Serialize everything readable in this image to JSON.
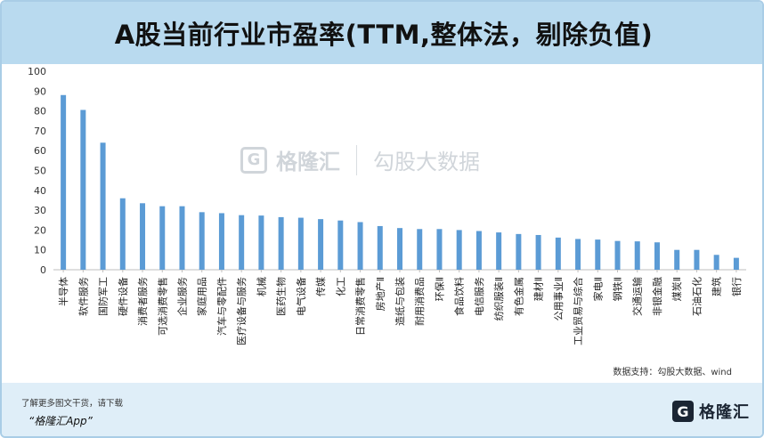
{
  "title": "A股当前行业市盈率(TTM,整体法，剔除负值)",
  "source": "数据支持：勾股大数据、wind",
  "footer": {
    "hint": "了解更多图文干货，请下载",
    "app": "“格隆汇App”",
    "brand_name": "格隆汇",
    "brand_icon": "G"
  },
  "watermark": {
    "brand": "格隆汇",
    "icon": "G",
    "partner": "勾股大数据"
  },
  "colors": {
    "bar": "#5b9bd5",
    "title_bg": "#b9daef",
    "footer_bg": "#dfeef8",
    "grid": "#d9d9d9"
  },
  "chart_data": {
    "type": "bar",
    "categories": [
      "半导体",
      "软件服务",
      "国防军工",
      "硬件设备",
      "消费者服务",
      "可选消费零售",
      "企业服务",
      "家庭用品",
      "汽车与零配件",
      "医疗设备与服务",
      "机械",
      "医药生物",
      "电气设备",
      "传媒",
      "化工",
      "日常消费零售",
      "房地产Ⅱ",
      "造纸与包装",
      "耐用消费品",
      "环保Ⅱ",
      "食品饮料",
      "电信服务",
      "纺织服装Ⅱ",
      "有色金属",
      "建材Ⅱ",
      "公用事业Ⅱ",
      "工业贸易与综合",
      "家电Ⅱ",
      "钢铁Ⅱ",
      "交通运输",
      "非银金融",
      "煤炭Ⅱ",
      "石油石化",
      "建筑",
      "银行"
    ],
    "values": [
      88,
      80.5,
      64,
      36,
      33.5,
      32,
      32,
      29,
      28.5,
      27.5,
      27.3,
      26.5,
      26.2,
      25.5,
      24.8,
      24,
      22,
      21,
      20.5,
      20.5,
      20,
      19.5,
      18.8,
      18,
      17.5,
      16.2,
      15.5,
      15.2,
      14.5,
      14.3,
      13.8,
      10,
      10,
      7.5,
      6
    ],
    "xlabel": "",
    "ylabel": "",
    "ylim": [
      0,
      100
    ],
    "yticks": [
      0,
      10,
      20,
      30,
      40,
      50,
      60,
      70,
      80,
      90,
      100
    ],
    "grid": false,
    "legend": "none"
  }
}
